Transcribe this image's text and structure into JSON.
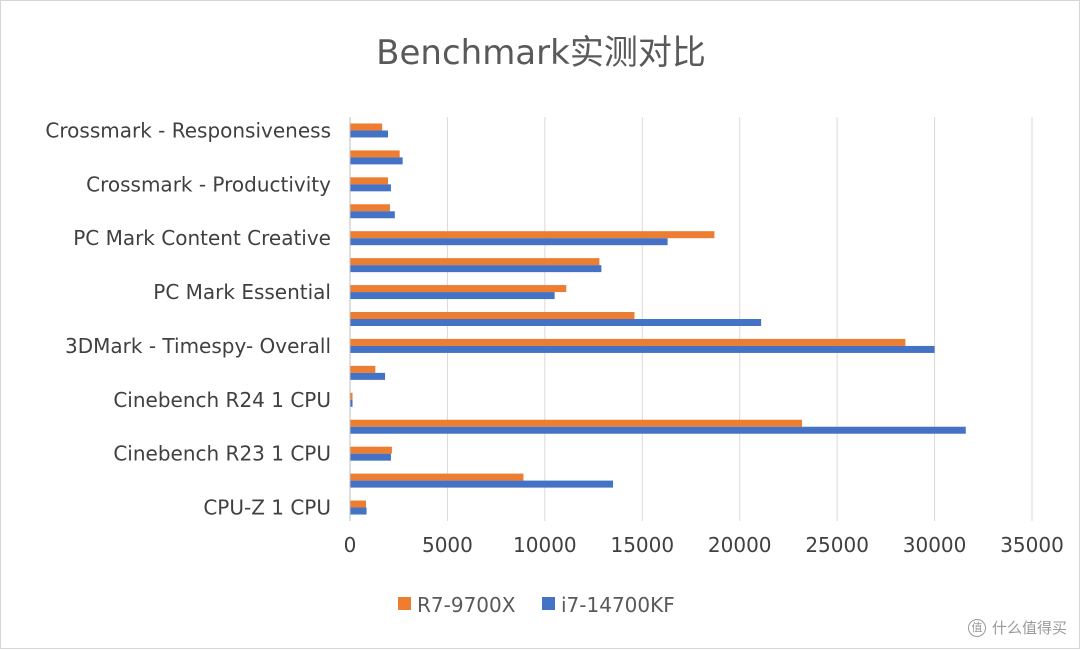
{
  "chart_data": {
    "type": "bar",
    "orientation": "horizontal",
    "title": "Benchmark实测对比",
    "category_labels_shown": [
      "Crossmark - Responsiveness",
      "Crossmark - Productivity",
      "PC Mark Content Creative",
      "PC Mark Essential",
      "3DMark - Timespy- Overall",
      "Cinebench R24 1 CPU",
      "Cinebench R23 1 CPU",
      "CPU-Z 1 CPU"
    ],
    "bar_group_count": 15,
    "series": [
      {
        "name": "R7-9700X",
        "color": "#ED7D31",
        "values": [
          1650,
          2550,
          1950,
          2050,
          18700,
          12800,
          11100,
          14600,
          28500,
          1300,
          130,
          23200,
          2150,
          8900,
          820
        ]
      },
      {
        "name": "i7-14700KF",
        "color": "#4472C4",
        "values": [
          1950,
          2700,
          2100,
          2300,
          16300,
          12900,
          10500,
          21100,
          30000,
          1800,
          130,
          31600,
          2100,
          13500,
          850
        ]
      }
    ],
    "xlim": [
      0,
      35000
    ],
    "x_ticks": [
      "0",
      "5000",
      "10000",
      "15000",
      "20000",
      "25000",
      "30000",
      "35000"
    ],
    "grid": true,
    "legend_position": "bottom"
  },
  "watermark": {
    "logo": "值",
    "text": "什么值得买"
  }
}
